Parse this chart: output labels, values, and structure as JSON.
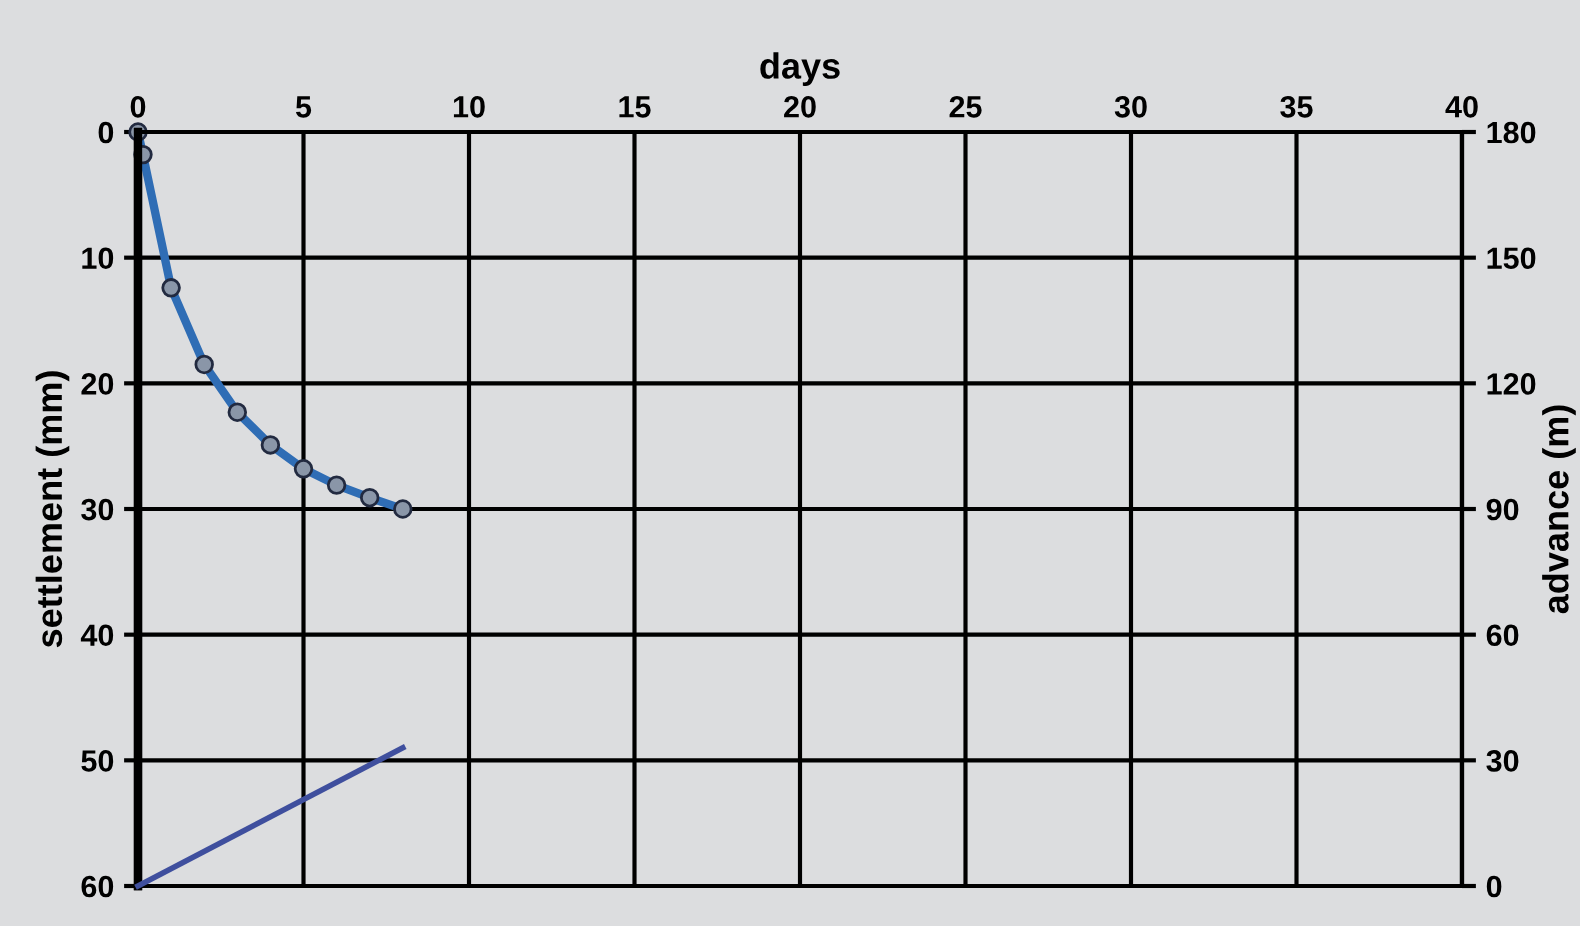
{
  "chart_data": {
    "type": "line",
    "xlabel": "days",
    "ylabel": "settlement (mm)",
    "y2label": "advance (m)",
    "xlim": [
      0,
      40
    ],
    "xticks": [
      0,
      5,
      10,
      15,
      20,
      25,
      30,
      35,
      40
    ],
    "ylim": [
      60,
      0
    ],
    "yticks": [
      0,
      10,
      20,
      30,
      40,
      50,
      60
    ],
    "y2lim": [
      0,
      180
    ],
    "y2ticks": [
      0,
      30,
      60,
      90,
      120,
      150,
      180
    ],
    "grid": true,
    "legend": false,
    "series": [
      {
        "x": [
          0,
          0.15,
          1,
          2,
          3,
          4,
          5,
          6,
          7,
          8
        ],
        "values": [
          0,
          1.8,
          12.4,
          18.5,
          22.3,
          24.9,
          26.8,
          28.1,
          29.1,
          30.0
        ],
        "color": "#2f6db5",
        "marker": "circle"
      },
      {
        "type": "line",
        "axis": "y2",
        "x": [
          0,
          8
        ],
        "values": [
          0,
          33
        ],
        "color": "#3f4f9e",
        "marker": "none"
      }
    ]
  }
}
